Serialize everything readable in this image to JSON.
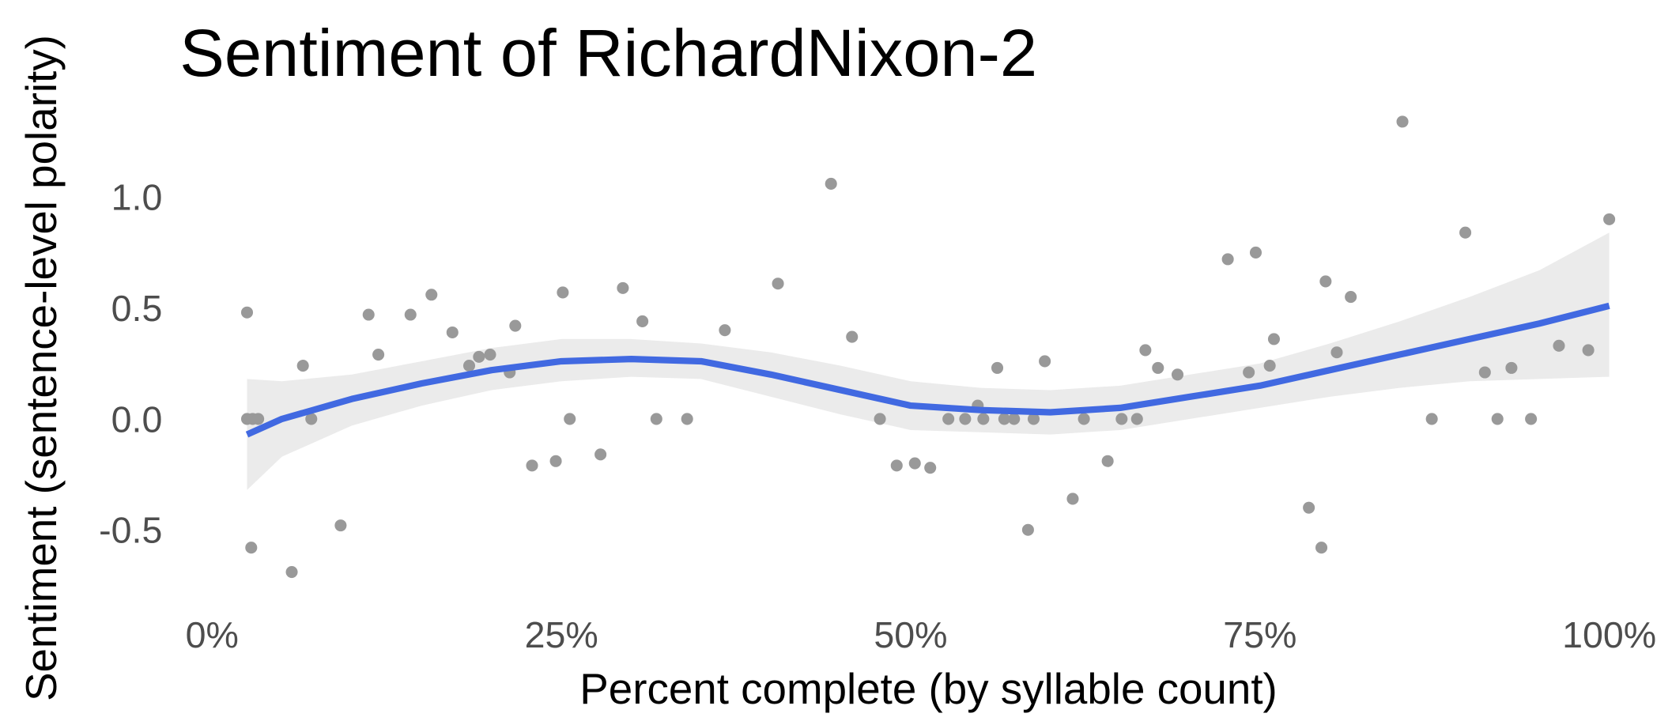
{
  "chart_data": {
    "type": "scatter",
    "title": "Sentiment of RichardNixon-2",
    "x_label": "Percent complete (by syllable count)",
    "y_label": "Sentiment (sentence-level polarity)",
    "xlim": [
      0,
      100
    ],
    "ylim": [
      -0.8,
      1.4
    ],
    "xticks": [
      {
        "value": 0,
        "label": "0%"
      },
      {
        "value": 25,
        "label": "25%"
      },
      {
        "value": 50,
        "label": "50%"
      },
      {
        "value": 75,
        "label": "75%"
      },
      {
        "value": 100,
        "label": "100%"
      }
    ],
    "yticks": [
      {
        "value": -0.5,
        "label": "-0.5"
      },
      {
        "value": 0,
        "label": "0.0"
      },
      {
        "value": 0.5,
        "label": "0.5"
      },
      {
        "value": 1,
        "label": "1.0"
      }
    ],
    "points": {
      "color": "#999999",
      "x": [
        2.5,
        2.5,
        2.8,
        2.9,
        3.3,
        5.7,
        6.5,
        7.1,
        9.2,
        11.2,
        11.9,
        14.2,
        15.7,
        17.2,
        18.4,
        19.1,
        19.9,
        21.3,
        21.7,
        22.9,
        24.6,
        25.1,
        25.6,
        27.8,
        29.4,
        30.8,
        31.8,
        34,
        36.7,
        40.5,
        44.3,
        45.8,
        47.8,
        49,
        50.3,
        51.4,
        52.7,
        53.9,
        54.8,
        55.2,
        56.2,
        56.7,
        57.4,
        58.4,
        58.8,
        59.6,
        61.6,
        62.4,
        64.1,
        65.1,
        66.2,
        66.8,
        67.7,
        69.1,
        72.7,
        74.2,
        74.7,
        75.7,
        76,
        78.5,
        79.4,
        79.7,
        80.5,
        81.5,
        85.2,
        87.3,
        89.7,
        91.1,
        92,
        93,
        94.4,
        96.4,
        98.5,
        100
      ],
      "values": [
        0.48,
        0,
        -0.58,
        0,
        0,
        -0.69,
        0.24,
        0,
        -0.48,
        0.47,
        0.29,
        0.47,
        0.56,
        0.39,
        0.24,
        0.28,
        0.29,
        0.21,
        0.42,
        -0.21,
        -0.19,
        0.57,
        0,
        -0.16,
        0.59,
        0.44,
        0,
        0,
        0.4,
        0.61,
        1.06,
        0.37,
        0,
        -0.21,
        -0.2,
        -0.22,
        0,
        0,
        0.06,
        0,
        0.23,
        0,
        0,
        -0.5,
        0,
        0.26,
        -0.36,
        0,
        -0.19,
        0,
        0,
        0.31,
        0.23,
        0.2,
        0.72,
        0.21,
        0.75,
        0.24,
        0.36,
        -0.4,
        -0.58,
        0.62,
        0.3,
        0.55,
        1.34,
        0,
        0.84,
        0.21,
        0,
        0.23,
        0,
        0.33,
        0.31,
        0.9
      ]
    },
    "smooth": {
      "color": "#4169e1",
      "band_color": "#ebebeb",
      "x": [
        2.5,
        5,
        10,
        15,
        20,
        25,
        30,
        35,
        40,
        45,
        50,
        55,
        60,
        65,
        70,
        75,
        80,
        85,
        90,
        95,
        100
      ],
      "values": [
        -0.07,
        0,
        0.09,
        0.16,
        0.22,
        0.26,
        0.27,
        0.26,
        0.2,
        0.13,
        0.06,
        0.04,
        0.03,
        0.05,
        0.1,
        0.15,
        0.22,
        0.29,
        0.36,
        0.43,
        0.51
      ],
      "lower": [
        -0.32,
        -0.17,
        -0.03,
        0.06,
        0.13,
        0.17,
        0.19,
        0.18,
        0.1,
        0.02,
        -0.05,
        -0.06,
        -0.07,
        -0.05,
        0,
        0.05,
        0.1,
        0.14,
        0.17,
        0.18,
        0.19
      ],
      "upper": [
        0.18,
        0.17,
        0.2,
        0.26,
        0.32,
        0.36,
        0.36,
        0.34,
        0.3,
        0.24,
        0.17,
        0.14,
        0.13,
        0.15,
        0.2,
        0.25,
        0.34,
        0.44,
        0.55,
        0.67,
        0.84
      ]
    }
  }
}
